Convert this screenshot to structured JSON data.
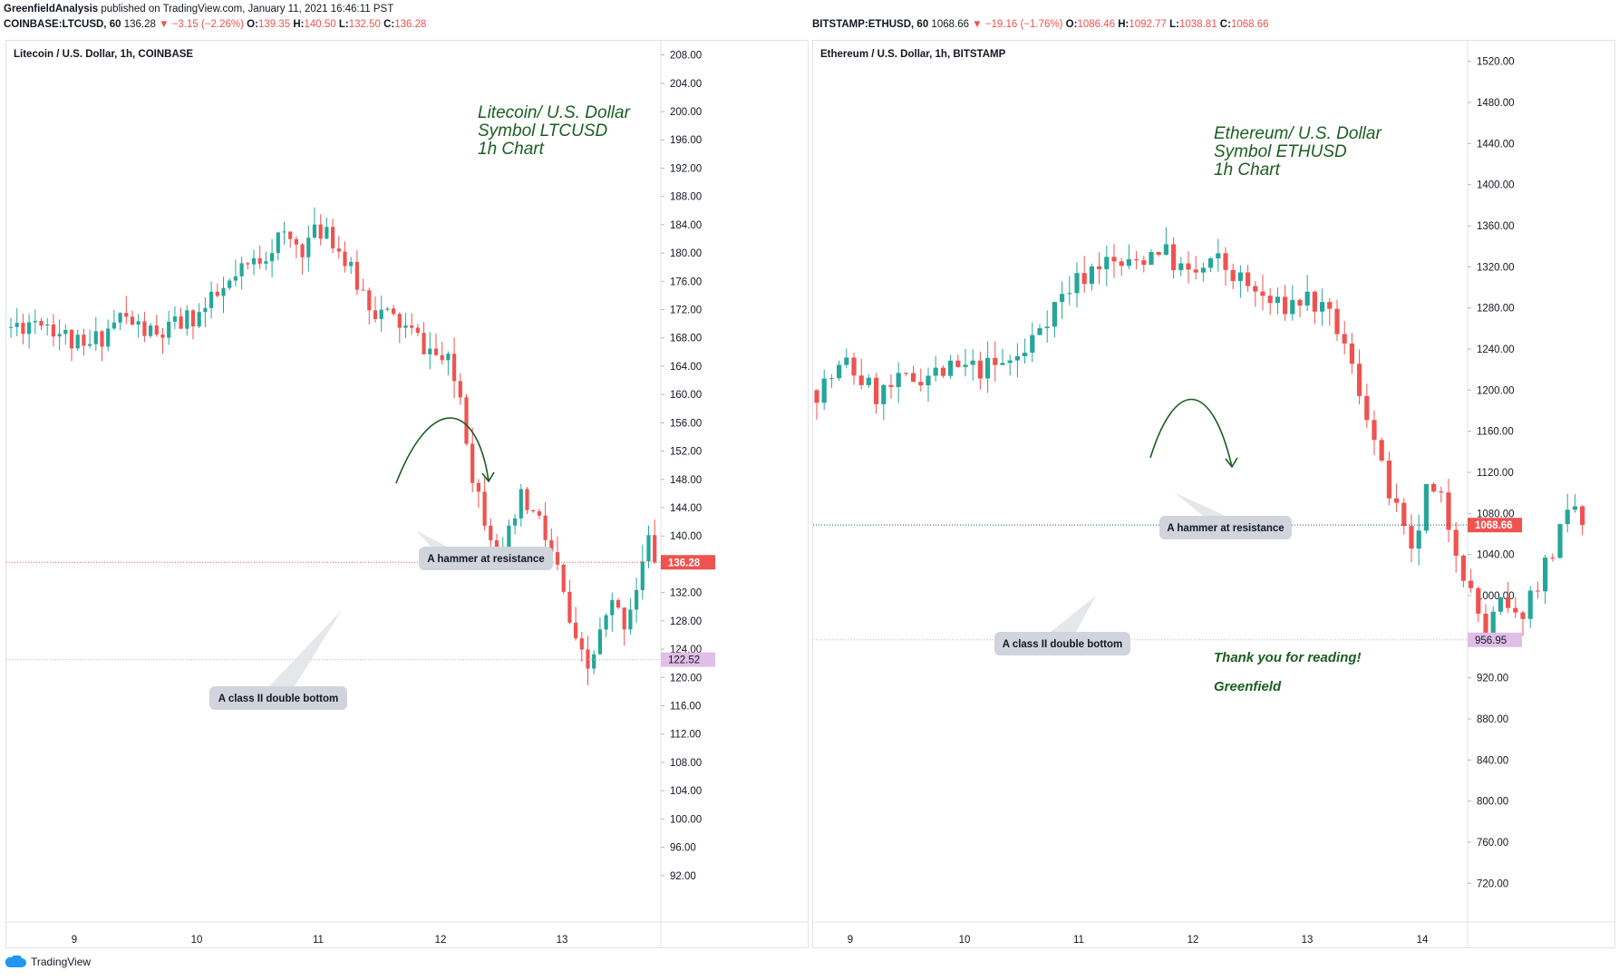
{
  "header": {
    "publisher": "GreenfieldAnalysis",
    "published_text": "published on TradingView.com, January 11, 2021 16:46:11 PST"
  },
  "footer": {
    "brand": "TradingView",
    "icon": "tradingview-cloud-icon"
  },
  "colors": {
    "up": "#26a69a",
    "down": "#ef5350",
    "annotation_green": "#1b5e20",
    "callout_bg": "#d1d4dc"
  },
  "charts": [
    {
      "symbol_line": {
        "symbol": "COINBASE:LTCUSD, 60",
        "price": "136.28",
        "change": "−3.15 (−2.26%)",
        "o_label": "O:",
        "o": "139.35",
        "h_label": "H:",
        "h": "140.50",
        "l_label": "L:",
        "l": "132.50",
        "c_label": "C:",
        "c": "136.28"
      },
      "legend": "Litecoin / U.S. Dollar, 1h, COINBASE",
      "note_lines": [
        "Litecoin/ U.S. Dollar",
        "Symbol LTCUSD",
        "1h Chart"
      ],
      "callout_top": "A hammer at resistance",
      "callout_bottom": "A class II double bottom",
      "price_tag": "136.28",
      "support_tag": "122.52",
      "thanks": "",
      "signature": "",
      "price_ticks": [
        "208.00",
        "204.00",
        "200.00",
        "196.00",
        "192.00",
        "188.00",
        "184.00",
        "180.00",
        "176.00",
        "172.00",
        "168.00",
        "164.00",
        "160.00",
        "156.00",
        "152.00",
        "148.00",
        "144.00",
        "140.00",
        "136.00",
        "132.00",
        "128.00",
        "124.00",
        "120.00",
        "116.00",
        "112.00",
        "108.00",
        "104.00",
        "100.00",
        "96.00",
        "92.00"
      ],
      "time_ticks": [
        "9",
        "10",
        "11",
        "12",
        "13"
      ]
    },
    {
      "symbol_line": {
        "symbol": "BITSTAMP:ETHUSD, 60",
        "price": "1068.66",
        "change": "−19.16 (−1.76%)",
        "o_label": "O:",
        "o": "1086.46",
        "h_label": "H:",
        "h": "1092.77",
        "l_label": "L:",
        "l": "1038.81",
        "c_label": "C:",
        "c": "1068.66"
      },
      "legend": "Ethereum / U.S. Dollar, 1h, BITSTAMP",
      "note_lines": [
        "Ethereum/ U.S. Dollar",
        "Symbol ETHUSD",
        "1h Chart"
      ],
      "callout_top": "A hammer at resistance",
      "callout_bottom": "A class II double bottom",
      "price_tag": "1068.66",
      "support_tag": "956.95",
      "thanks": "Thank you for reading!",
      "signature": "Greenfield",
      "price_ticks": [
        "1520.00",
        "1480.00",
        "1440.00",
        "1400.00",
        "1360.00",
        "1320.00",
        "1280.00",
        "1240.00",
        "1200.00",
        "1160.00",
        "1120.00",
        "1080.00",
        "1040.00",
        "1000.00",
        "960.00",
        "920.00",
        "880.00",
        "840.00",
        "800.00",
        "760.00",
        "720.00"
      ],
      "time_ticks": [
        "9",
        "10",
        "11",
        "12",
        "13",
        "14"
      ]
    }
  ],
  "chart_data": [
    {
      "type": "candlestick",
      "title": "Litecoin / U.S. Dollar, 1h, COINBASE",
      "ylim": [
        88,
        210
      ],
      "x_day_labels": [
        "9",
        "10",
        "11",
        "12",
        "13"
      ],
      "bar_interval": "1h",
      "last_price": 136.28,
      "support_level": 122.52,
      "anchors": [
        {
          "t": 0,
          "p": 169.5
        },
        {
          "t": 5,
          "p": 171
        },
        {
          "t": 12,
          "p": 166
        },
        {
          "t": 18,
          "p": 171
        },
        {
          "t": 24,
          "p": 168
        },
        {
          "t": 32,
          "p": 172
        },
        {
          "t": 38,
          "p": 177
        },
        {
          "t": 44,
          "p": 182
        },
        {
          "t": 48,
          "p": 181
        },
        {
          "t": 52,
          "p": 184
        },
        {
          "t": 56,
          "p": 177
        },
        {
          "t": 60,
          "p": 172
        },
        {
          "t": 64,
          "p": 170
        },
        {
          "t": 68,
          "p": 167
        },
        {
          "t": 72,
          "p": 164
        },
        {
          "t": 74,
          "p": 160
        },
        {
          "t": 76,
          "p": 149
        },
        {
          "t": 78,
          "p": 143
        },
        {
          "t": 81,
          "p": 137
        },
        {
          "t": 84,
          "p": 145
        },
        {
          "t": 87,
          "p": 142
        },
        {
          "t": 90,
          "p": 135
        },
        {
          "t": 93,
          "p": 124
        },
        {
          "t": 95,
          "p": 121
        },
        {
          "t": 97,
          "p": 126
        },
        {
          "t": 99,
          "p": 130
        },
        {
          "t": 101,
          "p": 128
        },
        {
          "t": 103,
          "p": 133
        },
        {
          "t": 105,
          "p": 139
        },
        {
          "t": 106,
          "p": 136.28
        }
      ]
    },
    {
      "type": "candlestick",
      "title": "Ethereum / U.S. Dollar, 1h, BITSTAMP",
      "ylim": [
        700,
        1540
      ],
      "x_day_labels": [
        "9",
        "10",
        "11",
        "12",
        "13",
        "14"
      ],
      "bar_interval": "1h",
      "last_price": 1068.66,
      "support_level": 956.95,
      "anchors": [
        {
          "t": 0,
          "p": 1200
        },
        {
          "t": 4,
          "p": 1225
        },
        {
          "t": 8,
          "p": 1195
        },
        {
          "t": 14,
          "p": 1215
        },
        {
          "t": 20,
          "p": 1220
        },
        {
          "t": 24,
          "p": 1222
        },
        {
          "t": 28,
          "p": 1235
        },
        {
          "t": 30,
          "p": 1265
        },
        {
          "t": 34,
          "p": 1300
        },
        {
          "t": 38,
          "p": 1325
        },
        {
          "t": 42,
          "p": 1320
        },
        {
          "t": 46,
          "p": 1340
        },
        {
          "t": 50,
          "p": 1310
        },
        {
          "t": 54,
          "p": 1325
        },
        {
          "t": 58,
          "p": 1300
        },
        {
          "t": 62,
          "p": 1280
        },
        {
          "t": 66,
          "p": 1290
        },
        {
          "t": 70,
          "p": 1260
        },
        {
          "t": 74,
          "p": 1180
        },
        {
          "t": 76,
          "p": 1120
        },
        {
          "t": 78,
          "p": 1080
        },
        {
          "t": 80,
          "p": 1035
        },
        {
          "t": 82,
          "p": 1100
        },
        {
          "t": 84,
          "p": 1090
        },
        {
          "t": 86,
          "p": 1050
        },
        {
          "t": 88,
          "p": 1000
        },
        {
          "t": 90,
          "p": 965
        },
        {
          "t": 92,
          "p": 990
        },
        {
          "t": 94,
          "p": 975
        },
        {
          "t": 96,
          "p": 1000
        },
        {
          "t": 98,
          "p": 1030
        },
        {
          "t": 100,
          "p": 1060
        },
        {
          "t": 102,
          "p": 1085
        },
        {
          "t": 103,
          "p": 1068.66
        }
      ]
    }
  ]
}
